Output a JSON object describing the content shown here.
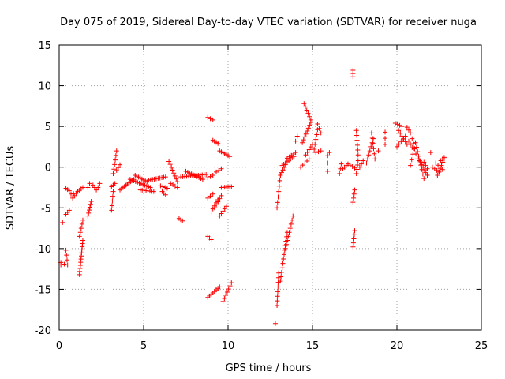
{
  "chart_data": {
    "type": "scatter",
    "title": "Day 075 of 2019, Sidereal Day-to-day VTEC variation (SDTVAR) for receiver nuga",
    "xlabel": "GPS time / hours",
    "ylabel": "SDTVAR / TECUs",
    "xlim": [
      0,
      25
    ],
    "ylim": [
      -20,
      15
    ],
    "grid": true,
    "marker": "+",
    "colors": {
      "points": "#ff0000",
      "grid": "#a0a0a0",
      "axis": "#000000"
    },
    "x_ticks": [
      "0",
      "5",
      "10",
      "15",
      "20",
      "25"
    ],
    "x_tick_values": [
      0,
      5,
      10,
      15,
      20,
      25
    ],
    "y_ticks": [
      "15",
      "10",
      "5",
      "0",
      "-5",
      "-10",
      "-15",
      "-20"
    ],
    "y_tick_values": [
      15,
      10,
      5,
      0,
      -5,
      -10,
      -15,
      -20
    ],
    "segments": [
      [
        0.1,
        -12.0,
        0.2,
        -6.8,
        2
      ],
      [
        0.1,
        -11.7,
        0.3,
        -11.9,
        2
      ],
      [
        0.4,
        -10.2,
        0.5,
        -12.0,
        4
      ],
      [
        0.4,
        -5.8,
        0.6,
        -5.3,
        3
      ],
      [
        0.4,
        -2.6,
        0.6,
        -2.9,
        3
      ],
      [
        0.7,
        -3.3,
        1.0,
        -3.2,
        3
      ],
      [
        0.8,
        -3.8,
        0.9,
        -3.5,
        2
      ],
      [
        1.1,
        -3.0,
        1.4,
        -2.5,
        4
      ],
      [
        1.2,
        -8.5,
        1.4,
        -6.5,
        5
      ],
      [
        1.2,
        -13.2,
        1.4,
        -9.0,
        12
      ],
      [
        1.7,
        -2.5,
        1.8,
        -2.0,
        2
      ],
      [
        1.7,
        -6.0,
        1.9,
        -4.2,
        6
      ],
      [
        2.0,
        -2.2,
        2.2,
        -2.8,
        3
      ],
      [
        2.3,
        -2.5,
        2.4,
        -2.0,
        2
      ],
      [
        3.1,
        -5.3,
        3.2,
        -3.0,
        5
      ],
      [
        3.1,
        -2.4,
        3.3,
        -2.0,
        3
      ],
      [
        3.2,
        -0.8,
        3.4,
        2.0,
        6
      ],
      [
        3.4,
        -0.4,
        3.6,
        0.3,
        3
      ],
      [
        3.6,
        -2.8,
        4.4,
        -1.5,
        10
      ],
      [
        4.2,
        -1.5,
        5.4,
        -2.5,
        12
      ],
      [
        4.5,
        -1.0,
        5.2,
        -1.8,
        8
      ],
      [
        4.8,
        -2.8,
        5.6,
        -3.0,
        8
      ],
      [
        5.3,
        -1.6,
        6.3,
        -1.2,
        10
      ],
      [
        6.0,
        -2.3,
        6.4,
        -2.6,
        4
      ],
      [
        6.1,
        -3.0,
        6.3,
        -3.4,
        3
      ],
      [
        6.5,
        0.7,
        7.0,
        -1.8,
        8
      ],
      [
        6.6,
        -2.0,
        7.0,
        -2.5,
        4
      ],
      [
        7.1,
        -6.3,
        7.3,
        -6.6,
        3
      ],
      [
        7.2,
        -1.2,
        8.7,
        -0.9,
        14
      ],
      [
        7.5,
        -0.5,
        8.5,
        -1.5,
        10
      ],
      [
        8.8,
        6.1,
        9.1,
        5.8,
        3
      ],
      [
        8.8,
        -8.5,
        9.0,
        -8.9,
        3
      ],
      [
        8.8,
        -3.8,
        9.1,
        -3.3,
        3
      ],
      [
        8.8,
        -1.3,
        9.1,
        -1.0,
        3
      ],
      [
        8.8,
        -16.0,
        9.5,
        -14.7,
        8
      ],
      [
        9.0,
        -5.5,
        9.4,
        -4.0,
        5
      ],
      [
        9.1,
        3.3,
        9.4,
        2.9,
        4
      ],
      [
        9.2,
        -5.0,
        9.6,
        -3.5,
        5
      ],
      [
        9.3,
        -0.6,
        9.6,
        -0.2,
        3
      ],
      [
        9.5,
        -6.0,
        9.9,
        -4.8,
        5
      ],
      [
        9.5,
        2.0,
        10.1,
        1.3,
        7
      ],
      [
        9.6,
        -2.5,
        10.2,
        -2.4,
        7
      ],
      [
        9.7,
        -16.5,
        10.2,
        -14.2,
        7
      ],
      [
        12.8,
        -19.2,
        12.8,
        -19.2,
        1
      ],
      [
        12.9,
        -17.0,
        13.0,
        -13.0,
        8
      ],
      [
        12.9,
        -5.0,
        13.1,
        -1.0,
        7
      ],
      [
        13.1,
        -14.0,
        13.5,
        -8.0,
        12
      ],
      [
        13.1,
        -1.0,
        13.4,
        0.3,
        5
      ],
      [
        13.2,
        0.2,
        13.9,
        1.3,
        8
      ],
      [
        13.4,
        -10.0,
        13.9,
        -5.5,
        10
      ],
      [
        13.5,
        1.1,
        14.0,
        1.8,
        5
      ],
      [
        14.0,
        3.2,
        14.1,
        3.8,
        2
      ],
      [
        14.3,
        0.0,
        14.8,
        1.0,
        5
      ],
      [
        14.4,
        3.0,
        14.9,
        5.5,
        8
      ],
      [
        14.5,
        7.8,
        14.9,
        5.8,
        6
      ],
      [
        14.6,
        1.5,
        15.0,
        2.8,
        5
      ],
      [
        15.1,
        2.2,
        15.3,
        4.6,
        5
      ],
      [
        15.2,
        1.8,
        15.5,
        2.0,
        3
      ],
      [
        15.3,
        5.3,
        15.5,
        4.2,
        3
      ],
      [
        15.9,
        1.4,
        16.0,
        1.8,
        2
      ],
      [
        15.9,
        0.5,
        15.9,
        0.5,
        1
      ],
      [
        15.9,
        -0.5,
        15.9,
        -0.5,
        1
      ],
      [
        16.6,
        -0.8,
        16.7,
        0.4,
        3
      ],
      [
        16.8,
        -0.2,
        17.0,
        0.2,
        3
      ],
      [
        17.1,
        0.4,
        17.5,
        -0.1,
        4
      ],
      [
        17.4,
        11.9,
        17.4,
        11.1,
        3
      ],
      [
        17.4,
        -9.8,
        17.5,
        -7.8,
        5
      ],
      [
        17.4,
        -4.3,
        17.5,
        -2.8,
        4
      ],
      [
        17.6,
        -0.8,
        17.7,
        0.8,
        4
      ],
      [
        17.6,
        4.5,
        17.7,
        1.5,
        6
      ],
      [
        17.8,
        0.0,
        18.0,
        0.8,
        3
      ],
      [
        18.2,
        0.5,
        18.6,
        3.5,
        7
      ],
      [
        18.5,
        4.2,
        18.7,
        1.0,
        6
      ],
      [
        18.9,
        2.0,
        18.9,
        2.0,
        1
      ],
      [
        19.3,
        2.8,
        19.3,
        4.3,
        3
      ],
      [
        19.9,
        5.4,
        20.3,
        5.0,
        4
      ],
      [
        20.0,
        2.5,
        20.5,
        3.8,
        5
      ],
      [
        20.1,
        4.5,
        20.6,
        2.8,
        6
      ],
      [
        20.6,
        4.9,
        20.8,
        4.2,
        3
      ],
      [
        20.7,
        3.2,
        20.9,
        2.4,
        3
      ],
      [
        20.8,
        0.2,
        21.1,
        3.0,
        5
      ],
      [
        20.9,
        3.5,
        21.2,
        1.0,
        5
      ],
      [
        21.1,
        3.0,
        21.6,
        -1.4,
        9
      ],
      [
        21.3,
        1.0,
        21.8,
        -1.0,
        7
      ],
      [
        21.6,
        0.6,
        21.8,
        -0.2,
        3
      ],
      [
        22.0,
        1.8,
        22.0,
        1.8,
        1
      ],
      [
        22.1,
        0.0,
        22.5,
        -0.6,
        4
      ],
      [
        22.3,
        0.5,
        22.7,
        -0.3,
        4
      ],
      [
        22.4,
        -1.0,
        22.8,
        1.0,
        6
      ],
      [
        22.6,
        0.8,
        22.8,
        1.2,
        3
      ]
    ]
  }
}
